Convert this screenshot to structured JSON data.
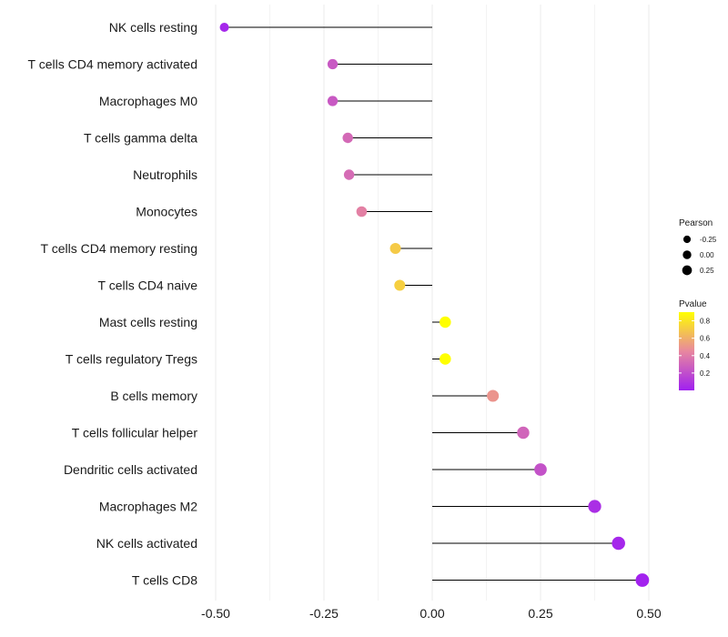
{
  "chart_data": {
    "type": "lollipop",
    "title": "",
    "xlabel": "",
    "ylabel": "",
    "xlim": [
      -0.5,
      0.5
    ],
    "xticks": [
      -0.5,
      -0.25,
      0.0,
      0.25,
      0.5
    ],
    "xtick_labels": [
      "-0.50",
      "-0.25",
      "0.00",
      "0.25",
      "0.50"
    ],
    "grid": true,
    "points": [
      {
        "label": "NK cells resting",
        "value": -0.48,
        "pvalue": 0.03
      },
      {
        "label": "T cells CD4 memory activated",
        "value": -0.23,
        "pvalue": 0.25
      },
      {
        "label": "Macrophages M0",
        "value": -0.23,
        "pvalue": 0.25
      },
      {
        "label": "T cells gamma delta",
        "value": -0.195,
        "pvalue": 0.32
      },
      {
        "label": "Neutrophils",
        "value": -0.192,
        "pvalue": 0.33
      },
      {
        "label": "Monocytes",
        "value": -0.163,
        "pvalue": 0.42
      },
      {
        "label": "T cells CD4 memory resting",
        "value": -0.085,
        "pvalue": 0.7
      },
      {
        "label": "T cells CD4 naive",
        "value": -0.075,
        "pvalue": 0.72
      },
      {
        "label": "Mast cells resting",
        "value": 0.03,
        "pvalue": 0.9
      },
      {
        "label": "T cells regulatory  Tregs ",
        "value": 0.03,
        "pvalue": 0.9
      },
      {
        "label": "B cells memory",
        "value": 0.14,
        "pvalue": 0.5
      },
      {
        "label": "T cells follicular helper",
        "value": 0.21,
        "pvalue": 0.3
      },
      {
        "label": "Dendritic cells activated",
        "value": 0.25,
        "pvalue": 0.22
      },
      {
        "label": "Macrophages M2",
        "value": 0.375,
        "pvalue": 0.06
      },
      {
        "label": "NK cells activated",
        "value": 0.43,
        "pvalue": 0.03
      },
      {
        "label": "T cells CD8",
        "value": 0.485,
        "pvalue": 0.01
      }
    ],
    "size_legend": {
      "title": "Pearson",
      "entries": [
        {
          "label": "-0.25",
          "value": -0.25
        },
        {
          "label": "0.00",
          "value": 0.0
        },
        {
          "label": "0.25",
          "value": 0.25
        }
      ]
    },
    "color_legend": {
      "title": "Pvalue",
      "ticks": [
        {
          "label": "0.8",
          "value": 0.8
        },
        {
          "label": "0.6",
          "value": 0.6
        },
        {
          "label": "0.4",
          "value": 0.4
        },
        {
          "label": "0.2",
          "value": 0.2
        }
      ],
      "range": [
        0.0,
        0.9
      ],
      "low_color": "#a020f0",
      "high_color": "#ffff00"
    },
    "colors": {
      "stem": "#000000",
      "grid": "#ebebeb"
    }
  }
}
